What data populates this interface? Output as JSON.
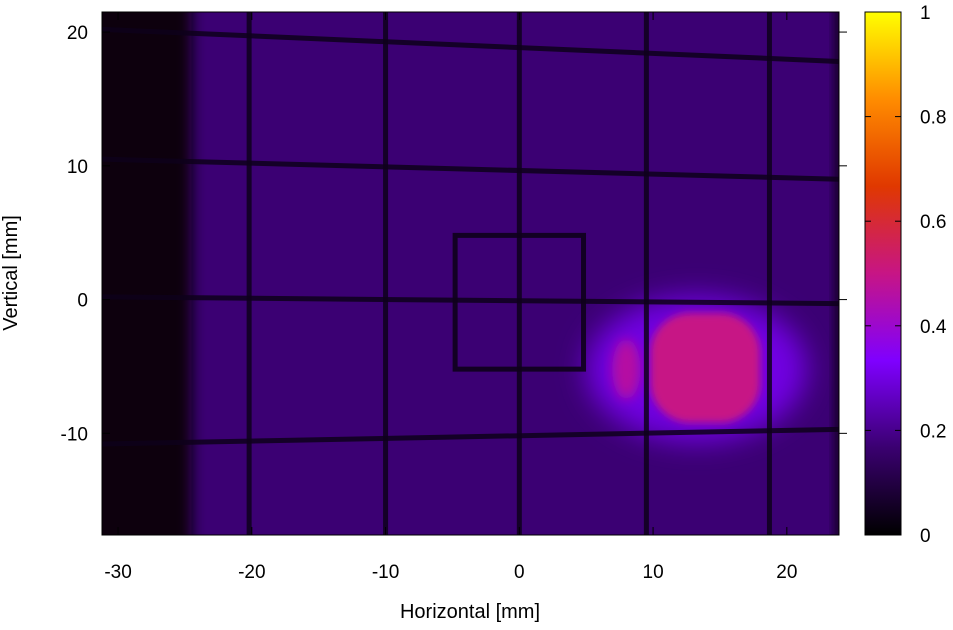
{
  "chart_data": {
    "type": "heatmap",
    "title": "",
    "xlabel": "Horizontal [mm]",
    "ylabel": "Vertical [mm]",
    "xlim": [
      -31.2,
      23.9
    ],
    "ylim": [
      -17.6,
      21.5
    ],
    "xticks": [
      -30,
      -20,
      -10,
      0,
      10,
      20
    ],
    "xtick_labels": [
      "-30",
      "-20",
      "-10",
      "0",
      "10",
      "20"
    ],
    "yticks": [
      -10,
      0,
      10,
      20
    ],
    "ytick_labels": [
      "-10",
      "0",
      "10",
      "20"
    ],
    "colorbar": {
      "range": [
        0,
        1
      ],
      "ticks": [
        0,
        0.2,
        0.4,
        0.6,
        0.8,
        1
      ],
      "tick_labels": [
        "0",
        "0.2",
        "0.4",
        "0.6",
        "0.8",
        "1"
      ],
      "colormap": [
        "#000000",
        "#3a0070",
        "#7f00ff",
        "#c71585",
        "#e03800",
        "#ff8c00",
        "#ffff00"
      ]
    },
    "background_intensity": 0.17,
    "dark_edge": {
      "x_max": -24.5,
      "intensity": 0.02
    },
    "grid_wires": {
      "vertical_x": [
        -20.2,
        -10,
        0,
        9.5,
        18.7
      ],
      "horizontal": [
        {
          "x_left": -31.2,
          "y_left": 20.2,
          "x_right": 23.9,
          "y_right": 17.8
        },
        {
          "x_left": -31.2,
          "y_left": 10.5,
          "x_right": 23.9,
          "y_right": 9.0
        },
        {
          "x_left": -31.2,
          "y_left": 0.2,
          "x_right": 23.9,
          "y_right": -0.3
        },
        {
          "x_left": -31.2,
          "y_left": -10.8,
          "x_right": 23.9,
          "y_right": -9.7
        }
      ],
      "intensity": 0.04
    },
    "center_square": {
      "x_min": -4.8,
      "x_max": 4.8,
      "y_min": -5.2,
      "y_max": 4.8
    },
    "hot_spot": {
      "center": [
        13.7,
        -5.2
      ],
      "x_range": [
        9.8,
        18.0
      ],
      "y_range": [
        -9.2,
        -1.0
      ],
      "peak_intensity": 0.5,
      "halo_range": [
        5.0,
        21.5
      ],
      "halo_intensity": 0.3
    }
  }
}
